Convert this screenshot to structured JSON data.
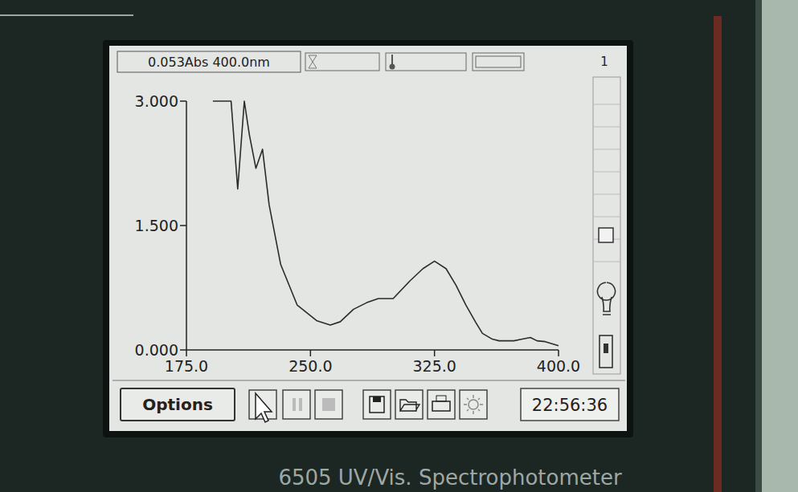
{
  "chart_data": {
    "type": "line",
    "x": [
      191,
      202,
      206,
      210,
      213,
      217,
      221,
      225,
      232,
      242,
      254,
      262,
      268,
      276,
      284,
      291,
      300,
      310,
      318,
      325,
      332,
      338,
      344,
      350,
      354,
      360,
      364,
      373,
      378,
      383,
      387,
      392,
      400
    ],
    "values": [
      3.0,
      3.0,
      1.94,
      3.0,
      2.6,
      2.19,
      2.42,
      1.75,
      1.03,
      0.54,
      0.35,
      0.3,
      0.34,
      0.49,
      0.57,
      0.62,
      0.62,
      0.83,
      0.98,
      1.07,
      0.98,
      0.78,
      0.54,
      0.33,
      0.2,
      0.13,
      0.11,
      0.11,
      0.13,
      0.15,
      0.11,
      0.1,
      0.05
    ],
    "color": "#2b2b2b",
    "xlim": [
      175,
      400
    ],
    "ylim": [
      0,
      3
    ],
    "xticks": [
      {
        "value": 175,
        "label": "175.0"
      },
      {
        "value": 250,
        "label": "250.0"
      },
      {
        "value": 325,
        "label": "325.0"
      },
      {
        "value": 400,
        "label": "400.0"
      }
    ],
    "yticks": [
      {
        "value": 0,
        "label": "0.000"
      },
      {
        "value": 1.5,
        "label": "1.500"
      },
      {
        "value": 3,
        "label": "3.000"
      }
    ]
  },
  "screen": {
    "status": "0.053Abs 400.0nm",
    "page": "1",
    "button": "Options",
    "clock": "22:56:36",
    "device": "6505 UV/Vis. Spectrophotometer"
  }
}
